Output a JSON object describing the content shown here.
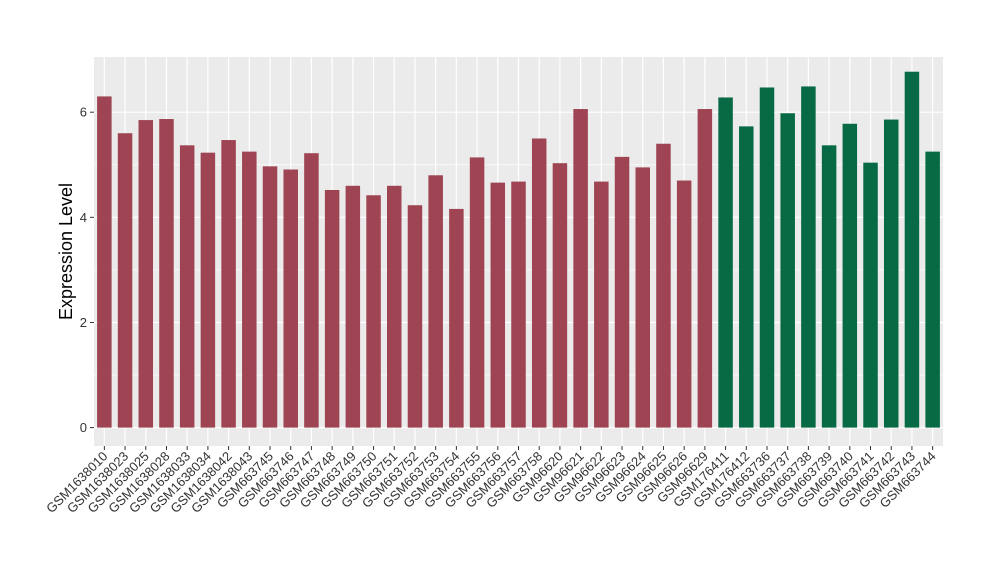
{
  "chart_data": {
    "type": "bar",
    "ylabel": "Expression Level",
    "xlabel": "",
    "ylim": [
      -0.35,
      7.05
    ],
    "yticks": [
      0,
      2,
      4,
      6
    ],
    "grid": true,
    "colors": {
      "group1": "#9E4452",
      "group2": "#076A45",
      "panel": "#EBEBEB",
      "grid": "#FFFFFF"
    },
    "categories": [
      "GSM1638010",
      "GSM1638023",
      "GSM1638025",
      "GSM1638028",
      "GSM1638033",
      "GSM1638034",
      "GSM1638042",
      "GSM1638043",
      "GSM663745",
      "GSM663746",
      "GSM663747",
      "GSM663748",
      "GSM663749",
      "GSM663750",
      "GSM663751",
      "GSM663752",
      "GSM663753",
      "GSM663754",
      "GSM663755",
      "GSM663756",
      "GSM663757",
      "GSM663758",
      "GSM96620",
      "GSM96621",
      "GSM96622",
      "GSM96623",
      "GSM96624",
      "GSM96625",
      "GSM96626",
      "GSM96629",
      "GSM176411",
      "GSM176412",
      "GSM663736",
      "GSM663737",
      "GSM663738",
      "GSM663739",
      "GSM663740",
      "GSM663741",
      "GSM663742",
      "GSM663743",
      "GSM663744"
    ],
    "values": [
      6.3,
      5.6,
      5.85,
      5.87,
      5.37,
      5.23,
      5.47,
      5.25,
      4.97,
      4.91,
      5.22,
      4.52,
      4.6,
      4.42,
      4.6,
      4.23,
      4.8,
      4.16,
      5.14,
      4.66,
      4.68,
      5.5,
      5.03,
      6.06,
      4.68,
      5.15,
      4.95,
      5.4,
      4.7,
      6.06,
      6.28,
      5.73,
      6.47,
      5.98,
      6.49,
      5.37,
      5.78,
      5.04,
      5.86,
      6.77,
      5.25
    ],
    "groups": [
      1,
      1,
      1,
      1,
      1,
      1,
      1,
      1,
      1,
      1,
      1,
      1,
      1,
      1,
      1,
      1,
      1,
      1,
      1,
      1,
      1,
      1,
      1,
      1,
      1,
      1,
      1,
      1,
      1,
      1,
      2,
      2,
      2,
      2,
      2,
      2,
      2,
      2,
      2,
      2,
      2
    ]
  }
}
